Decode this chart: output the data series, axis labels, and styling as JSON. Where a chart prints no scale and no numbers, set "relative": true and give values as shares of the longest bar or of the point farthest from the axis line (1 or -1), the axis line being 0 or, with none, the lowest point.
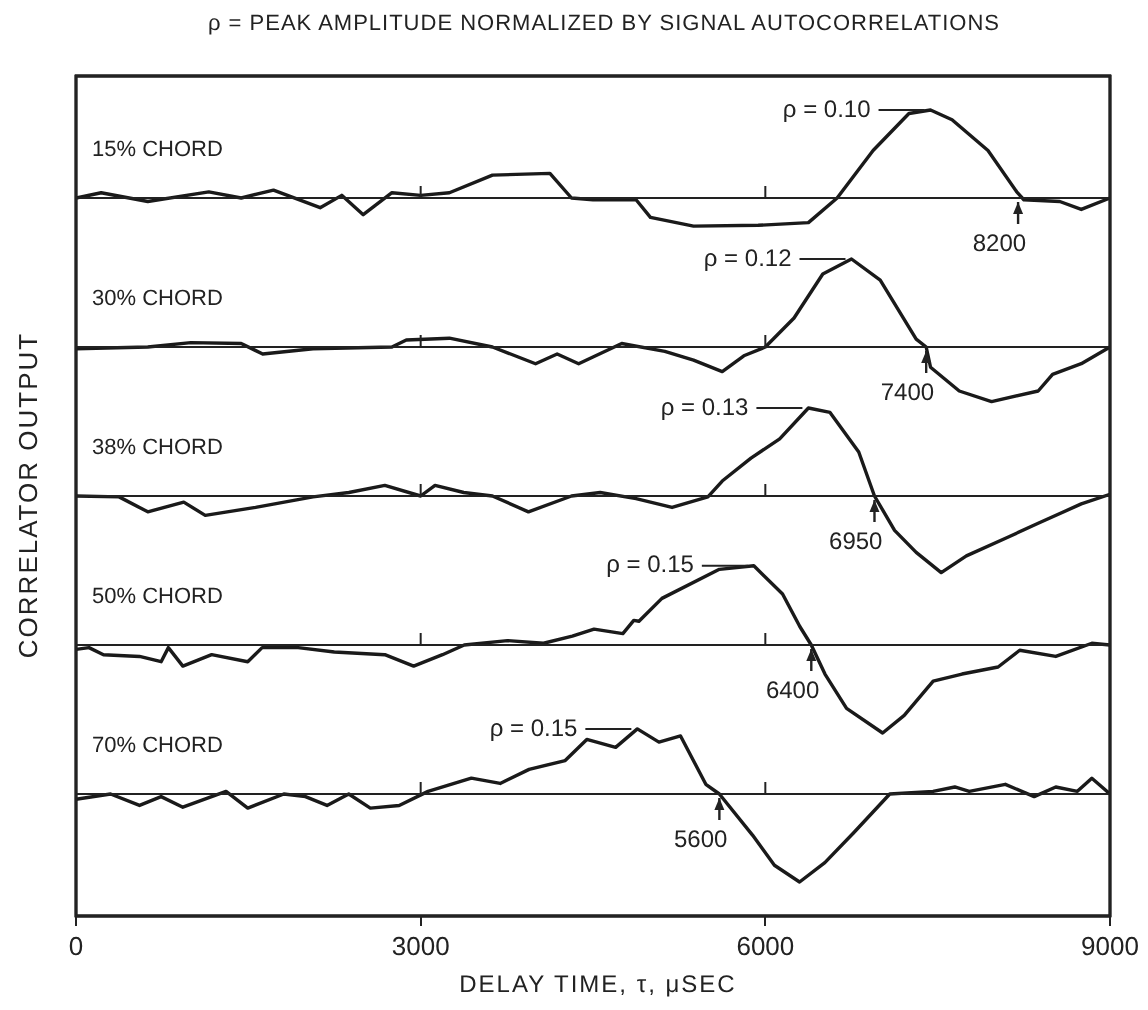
{
  "chart_data": [
    {
      "type": "line",
      "title": "ρ = PEAK AMPLITUDE NORMALIZED BY SIGNAL AUTOCORRELATIONS",
      "relative": true,
      "marker": "none",
      "tick_labels": false,
      "xlim": [
        0,
        9000
      ],
      "xticks": [
        0,
        3000,
        6000,
        9000
      ],
      "x": [
        0,
        219,
        625,
        1156,
        1438,
        1719,
        2125,
        2313,
        2500,
        2750,
        3000,
        3250,
        3625,
        4125,
        4313,
        4500,
        4875,
        5000,
        5375,
        5938,
        6375,
        6625,
        6938,
        7250,
        7438,
        7625,
        7938,
        8188,
        8250,
        8563,
        8750,
        9000
      ],
      "series": [
        {
          "name": "15% CHORD",
          "color": "#1a1a1a",
          "values": [
            0,
            0.06,
            -0.04,
            0.07,
            0,
            0.09,
            -0.11,
            0.03,
            -0.19,
            0.06,
            0.03,
            0.06,
            0.26,
            0.28,
            0,
            -0.02,
            -0.02,
            -0.22,
            -0.32,
            -0.31,
            -0.28,
            0,
            0.54,
            0.96,
            1,
            0.89,
            0.54,
            0.07,
            -0.02,
            -0.04,
            -0.13,
            0
          ]
        }
      ],
      "annotations": [
        {
          "text": "ρ = 0.10",
          "x": 7438,
          "y": 1
        },
        {
          "text": "8200",
          "x": 8200,
          "y": 0
        }
      ]
    },
    {
      "type": "line",
      "relative": true,
      "marker": "none",
      "tick_labels": false,
      "xlim": [
        0,
        9000
      ],
      "xticks": [
        0,
        3000,
        6000,
        9000
      ],
      "x": [
        0,
        625,
        1000,
        1438,
        1625,
        2063,
        2750,
        2875,
        3250,
        3625,
        4000,
        4188,
        4375,
        4750,
        5125,
        5375,
        5625,
        5813,
        6000,
        6250,
        6500,
        6750,
        7000,
        7313,
        7400,
        7438,
        7688,
        7969,
        8375,
        8500,
        8750,
        9000
      ],
      "series": [
        {
          "name": "30% CHORD",
          "color": "#1a1a1a",
          "values": [
            -0.02,
            0,
            0.05,
            0.04,
            -0.08,
            -0.02,
            0,
            0.08,
            0.1,
            0,
            -0.19,
            -0.08,
            -0.19,
            0.04,
            -0.05,
            -0.15,
            -0.28,
            -0.1,
            0,
            0.33,
            0.83,
            1,
            0.76,
            0.09,
            0,
            -0.23,
            -0.5,
            -0.62,
            -0.5,
            -0.31,
            -0.19,
            0
          ]
        }
      ],
      "annotations": [
        {
          "text": "ρ = 0.12",
          "x": 6750,
          "y": 1
        },
        {
          "text": "7400",
          "x": 7400,
          "y": 0
        }
      ]
    },
    {
      "type": "line",
      "relative": true,
      "marker": "none",
      "tick_labels": false,
      "xlim": [
        0,
        9000
      ],
      "xticks": [
        0,
        3000,
        6000,
        9000
      ],
      "ylabel": "CORRELATOR OUTPUT",
      "x": [
        0,
        375,
        625,
        938,
        1125,
        1563,
        2063,
        2375,
        2688,
        3000,
        3125,
        3375,
        3625,
        3938,
        4313,
        4563,
        4875,
        5188,
        5500,
        5625,
        5875,
        6125,
        6375,
        6563,
        6813,
        6950,
        7125,
        7313,
        7531,
        7750,
        8125,
        8375,
        8750,
        9000
      ],
      "series": [
        {
          "name": "38% CHORD",
          "color": "#1a1a1a",
          "values": [
            0,
            -0.01,
            -0.18,
            -0.07,
            -0.22,
            -0.13,
            -0.01,
            0.04,
            0.12,
            0,
            0.12,
            0.04,
            0,
            -0.18,
            0,
            0.04,
            -0.03,
            -0.13,
            -0.01,
            0.17,
            0.43,
            0.65,
            1,
            0.95,
            0.5,
            0,
            -0.39,
            -0.64,
            -0.87,
            -0.68,
            -0.46,
            -0.31,
            -0.09,
            0.02
          ]
        }
      ],
      "annotations": [
        {
          "text": "ρ = 0.13",
          "x": 6375,
          "y": 1
        },
        {
          "text": "6950",
          "x": 6950,
          "y": 0
        }
      ]
    },
    {
      "type": "line",
      "relative": true,
      "marker": "none",
      "tick_labels": false,
      "xlim": [
        0,
        9000
      ],
      "xticks": [
        0,
        3000,
        6000,
        9000
      ],
      "x": [
        0,
        113,
        239,
        553,
        741,
        804,
        930,
        1181,
        1495,
        1620,
        1934,
        2248,
        2688,
        2939,
        3190,
        3379,
        3755,
        4069,
        4320,
        4509,
        4760,
        4855,
        4900,
        5100,
        5600,
        5900,
        6150,
        6300,
        6400,
        6519,
        6707,
        7021,
        7209,
        7461,
        7712,
        8026,
        8214,
        8528,
        8842,
        9000
      ],
      "series": [
        {
          "name": "50% CHORD",
          "color": "#1a1a1a",
          "values": [
            -0.05,
            -0.03,
            -0.11,
            -0.13,
            -0.19,
            -0.03,
            -0.24,
            -0.11,
            -0.19,
            -0.03,
            -0.03,
            -0.08,
            -0.11,
            -0.24,
            -0.11,
            0,
            0.05,
            0.02,
            0.1,
            0.18,
            0.13,
            0.28,
            0.27,
            0.53,
            0.86,
            0.9,
            0.58,
            0.21,
            0,
            -0.33,
            -0.72,
            -1,
            -0.8,
            -0.41,
            -0.33,
            -0.25,
            -0.06,
            -0.13,
            0.02,
            0
          ]
        }
      ],
      "annotations": [
        {
          "text": "ρ = 0.15",
          "x": 5900,
          "y": 0.9
        },
        {
          "text": "6400",
          "x": 6400,
          "y": 0
        }
      ]
    },
    {
      "type": "line",
      "relative": true,
      "marker": "none",
      "tick_labels": "x",
      "xlim": [
        0,
        9000
      ],
      "xticks": [
        0,
        3000,
        6000,
        9000
      ],
      "xlabel": "DELAY TIME, τ, μSEC",
      "x": [
        0,
        301,
        553,
        741,
        930,
        1306,
        1495,
        1809,
        1997,
        2185,
        2374,
        2562,
        2813,
        3064,
        3441,
        3692,
        3944,
        4258,
        4446,
        4697,
        4886,
        5074,
        5262,
        5482,
        5600,
        5890,
        6079,
        6298,
        6518,
        6769,
        7083,
        7460,
        7649,
        7775,
        8089,
        8340,
        8528,
        8716,
        8842,
        9000
      ],
      "series": [
        {
          "name": "70% CHORD",
          "color": "#1a1a1a",
          "values": [
            -0.06,
            0,
            -0.13,
            -0.03,
            -0.15,
            0.03,
            -0.16,
            0,
            -0.03,
            -0.13,
            0,
            -0.16,
            -0.13,
            0.03,
            0.18,
            0.12,
            0.28,
            0.38,
            0.62,
            0.53,
            0.74,
            0.59,
            0.66,
            0.11,
            0,
            -0.47,
            -0.81,
            -1,
            -0.78,
            -0.44,
            0,
            0.03,
            0.08,
            0.03,
            0.11,
            -0.03,
            0.08,
            0.03,
            0.18,
            0
          ]
        }
      ],
      "annotations": [
        {
          "text": "ρ = 0.15",
          "x": 4886,
          "y": 0.74
        },
        {
          "text": "5600",
          "x": 5600,
          "y": 0
        }
      ]
    }
  ]
}
